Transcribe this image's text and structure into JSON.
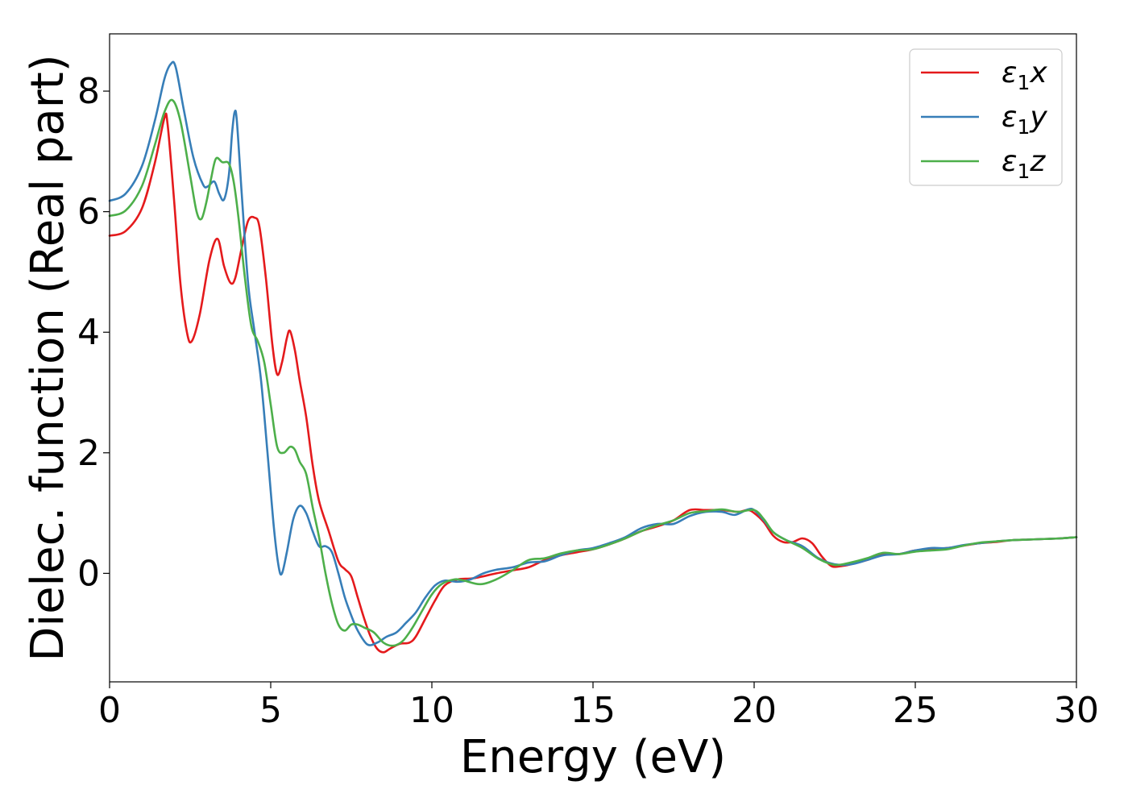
{
  "chart_data": {
    "type": "line",
    "xlabel": "Energy (eV)",
    "ylabel": "Dielec. function (Real part)",
    "xlim": [
      0,
      30
    ],
    "ylim": [
      -1.8,
      8.95
    ],
    "xticks": [
      0,
      5,
      10,
      15,
      20,
      25,
      30
    ],
    "yticks": [
      0,
      2,
      4,
      6,
      8
    ],
    "grid": false,
    "legend_position": "top-right",
    "series": [
      {
        "name": "ε₁x",
        "label_main": "ε",
        "label_sub": "1",
        "label_tail": "x",
        "color": "#e41a1c",
        "points": [
          [
            0,
            5.6
          ],
          [
            0.5,
            5.68
          ],
          [
            1.0,
            6.05
          ],
          [
            1.4,
            6.8
          ],
          [
            1.7,
            7.55
          ],
          [
            1.8,
            7.45
          ],
          [
            2.0,
            6.2
          ],
          [
            2.2,
            4.8
          ],
          [
            2.4,
            4.0
          ],
          [
            2.55,
            3.85
          ],
          [
            2.8,
            4.3
          ],
          [
            3.1,
            5.2
          ],
          [
            3.35,
            5.55
          ],
          [
            3.55,
            5.1
          ],
          [
            3.75,
            4.82
          ],
          [
            3.9,
            4.9
          ],
          [
            4.1,
            5.4
          ],
          [
            4.3,
            5.85
          ],
          [
            4.5,
            5.9
          ],
          [
            4.65,
            5.75
          ],
          [
            4.85,
            4.9
          ],
          [
            5.05,
            3.8
          ],
          [
            5.2,
            3.3
          ],
          [
            5.35,
            3.5
          ],
          [
            5.5,
            3.9
          ],
          [
            5.6,
            4.02
          ],
          [
            5.75,
            3.7
          ],
          [
            5.9,
            3.2
          ],
          [
            6.1,
            2.6
          ],
          [
            6.3,
            1.8
          ],
          [
            6.5,
            1.2
          ],
          [
            6.8,
            0.7
          ],
          [
            7.1,
            0.2
          ],
          [
            7.3,
            0.07
          ],
          [
            7.5,
            -0.05
          ],
          [
            7.7,
            -0.4
          ],
          [
            7.9,
            -0.75
          ],
          [
            8.1,
            -1.05
          ],
          [
            8.3,
            -1.25
          ],
          [
            8.5,
            -1.31
          ],
          [
            8.7,
            -1.25
          ],
          [
            9.0,
            -1.17
          ],
          [
            9.3,
            -1.15
          ],
          [
            9.5,
            -1.05
          ],
          [
            9.8,
            -0.75
          ],
          [
            10.1,
            -0.45
          ],
          [
            10.4,
            -0.2
          ],
          [
            10.8,
            -0.1
          ],
          [
            11.3,
            -0.08
          ],
          [
            12.0,
            0.0
          ],
          [
            12.5,
            0.05
          ],
          [
            13.0,
            0.1
          ],
          [
            13.5,
            0.22
          ],
          [
            14.0,
            0.3
          ],
          [
            14.5,
            0.35
          ],
          [
            15.0,
            0.4
          ],
          [
            15.5,
            0.48
          ],
          [
            16.0,
            0.58
          ],
          [
            16.5,
            0.7
          ],
          [
            17.0,
            0.78
          ],
          [
            17.5,
            0.88
          ],
          [
            18.0,
            1.05
          ],
          [
            18.5,
            1.05
          ],
          [
            19.0,
            1.05
          ],
          [
            19.5,
            1.02
          ],
          [
            19.8,
            1.05
          ],
          [
            20.0,
            1.0
          ],
          [
            20.3,
            0.85
          ],
          [
            20.6,
            0.62
          ],
          [
            20.9,
            0.52
          ],
          [
            21.2,
            0.52
          ],
          [
            21.5,
            0.58
          ],
          [
            21.8,
            0.5
          ],
          [
            22.1,
            0.28
          ],
          [
            22.4,
            0.12
          ],
          [
            22.7,
            0.12
          ],
          [
            23.0,
            0.15
          ],
          [
            23.5,
            0.22
          ],
          [
            24.0,
            0.32
          ],
          [
            24.5,
            0.32
          ],
          [
            25.0,
            0.38
          ],
          [
            25.5,
            0.4
          ],
          [
            26.0,
            0.42
          ],
          [
            26.5,
            0.46
          ],
          [
            27.0,
            0.5
          ],
          [
            27.5,
            0.52
          ],
          [
            28.0,
            0.55
          ],
          [
            28.5,
            0.56
          ],
          [
            29.0,
            0.57
          ],
          [
            29.5,
            0.58
          ],
          [
            30.0,
            0.6
          ]
        ]
      },
      {
        "name": "ε₁y",
        "label_main": "ε",
        "label_sub": "1",
        "label_tail": "y",
        "color": "#377eb8",
        "points": [
          [
            0,
            6.18
          ],
          [
            0.5,
            6.3
          ],
          [
            1.0,
            6.75
          ],
          [
            1.4,
            7.5
          ],
          [
            1.7,
            8.2
          ],
          [
            1.9,
            8.45
          ],
          [
            2.05,
            8.4
          ],
          [
            2.3,
            7.7
          ],
          [
            2.6,
            6.9
          ],
          [
            2.9,
            6.45
          ],
          [
            3.05,
            6.42
          ],
          [
            3.25,
            6.5
          ],
          [
            3.4,
            6.3
          ],
          [
            3.55,
            6.2
          ],
          [
            3.7,
            6.6
          ],
          [
            3.8,
            7.3
          ],
          [
            3.88,
            7.65
          ],
          [
            3.95,
            7.5
          ],
          [
            4.1,
            6.3
          ],
          [
            4.3,
            4.8
          ],
          [
            4.5,
            4.0
          ],
          [
            4.7,
            3.2
          ],
          [
            4.9,
            2.0
          ],
          [
            5.1,
            0.75
          ],
          [
            5.25,
            0.1
          ],
          [
            5.35,
            0.0
          ],
          [
            5.5,
            0.35
          ],
          [
            5.7,
            0.9
          ],
          [
            5.9,
            1.12
          ],
          [
            6.1,
            1.0
          ],
          [
            6.3,
            0.7
          ],
          [
            6.5,
            0.45
          ],
          [
            6.7,
            0.45
          ],
          [
            6.9,
            0.35
          ],
          [
            7.1,
            0.0
          ],
          [
            7.3,
            -0.4
          ],
          [
            7.5,
            -0.7
          ],
          [
            7.7,
            -0.95
          ],
          [
            8.0,
            -1.18
          ],
          [
            8.3,
            -1.15
          ],
          [
            8.6,
            -1.05
          ],
          [
            8.9,
            -0.98
          ],
          [
            9.2,
            -0.82
          ],
          [
            9.5,
            -0.65
          ],
          [
            9.8,
            -0.4
          ],
          [
            10.1,
            -0.2
          ],
          [
            10.4,
            -0.12
          ],
          [
            10.8,
            -0.14
          ],
          [
            11.2,
            -0.1
          ],
          [
            11.6,
            0.0
          ],
          [
            12.0,
            0.06
          ],
          [
            12.5,
            0.1
          ],
          [
            13.0,
            0.18
          ],
          [
            13.5,
            0.2
          ],
          [
            14.0,
            0.3
          ],
          [
            14.5,
            0.38
          ],
          [
            15.0,
            0.42
          ],
          [
            15.5,
            0.5
          ],
          [
            16.0,
            0.6
          ],
          [
            16.5,
            0.75
          ],
          [
            17.0,
            0.82
          ],
          [
            17.5,
            0.82
          ],
          [
            18.0,
            0.95
          ],
          [
            18.5,
            1.02
          ],
          [
            19.0,
            1.02
          ],
          [
            19.4,
            0.97
          ],
          [
            19.8,
            1.06
          ],
          [
            20.0,
            1.05
          ],
          [
            20.3,
            0.88
          ],
          [
            20.6,
            0.68
          ],
          [
            21.0,
            0.55
          ],
          [
            21.5,
            0.45
          ],
          [
            22.0,
            0.25
          ],
          [
            22.5,
            0.15
          ],
          [
            23.0,
            0.15
          ],
          [
            23.5,
            0.22
          ],
          [
            24.0,
            0.3
          ],
          [
            24.5,
            0.32
          ],
          [
            25.0,
            0.38
          ],
          [
            25.5,
            0.42
          ],
          [
            26.0,
            0.42
          ],
          [
            26.5,
            0.47
          ],
          [
            27.0,
            0.5
          ],
          [
            27.5,
            0.53
          ],
          [
            28.0,
            0.55
          ],
          [
            28.5,
            0.56
          ],
          [
            29.0,
            0.57
          ],
          [
            29.5,
            0.58
          ],
          [
            30.0,
            0.6
          ]
        ]
      },
      {
        "name": "ε₁z",
        "label_main": "ε",
        "label_sub": "1",
        "label_tail": "z",
        "color": "#4daf4a",
        "points": [
          [
            0,
            5.93
          ],
          [
            0.5,
            6.02
          ],
          [
            1.0,
            6.42
          ],
          [
            1.4,
            7.1
          ],
          [
            1.7,
            7.65
          ],
          [
            1.95,
            7.85
          ],
          [
            2.2,
            7.5
          ],
          [
            2.5,
            6.6
          ],
          [
            2.7,
            6.0
          ],
          [
            2.85,
            5.88
          ],
          [
            3.0,
            6.15
          ],
          [
            3.15,
            6.55
          ],
          [
            3.3,
            6.88
          ],
          [
            3.5,
            6.82
          ],
          [
            3.7,
            6.8
          ],
          [
            3.85,
            6.5
          ],
          [
            4.0,
            5.9
          ],
          [
            4.2,
            4.9
          ],
          [
            4.4,
            4.1
          ],
          [
            4.6,
            3.85
          ],
          [
            4.8,
            3.5
          ],
          [
            5.0,
            2.8
          ],
          [
            5.2,
            2.1
          ],
          [
            5.4,
            2.0
          ],
          [
            5.6,
            2.1
          ],
          [
            5.75,
            2.05
          ],
          [
            5.9,
            1.85
          ],
          [
            6.1,
            1.65
          ],
          [
            6.3,
            1.1
          ],
          [
            6.5,
            0.6
          ],
          [
            6.7,
            0.0
          ],
          [
            6.9,
            -0.5
          ],
          [
            7.1,
            -0.85
          ],
          [
            7.3,
            -0.95
          ],
          [
            7.5,
            -0.85
          ],
          [
            7.7,
            -0.85
          ],
          [
            7.9,
            -0.9
          ],
          [
            8.2,
            -0.98
          ],
          [
            8.5,
            -1.15
          ],
          [
            8.8,
            -1.2
          ],
          [
            9.1,
            -1.12
          ],
          [
            9.4,
            -0.9
          ],
          [
            9.7,
            -0.62
          ],
          [
            10.0,
            -0.35
          ],
          [
            10.3,
            -0.18
          ],
          [
            10.7,
            -0.1
          ],
          [
            11.0,
            -0.12
          ],
          [
            11.5,
            -0.18
          ],
          [
            12.0,
            -0.1
          ],
          [
            12.5,
            0.05
          ],
          [
            13.0,
            0.22
          ],
          [
            13.5,
            0.25
          ],
          [
            14.0,
            0.33
          ],
          [
            14.5,
            0.38
          ],
          [
            15.0,
            0.4
          ],
          [
            15.5,
            0.48
          ],
          [
            16.0,
            0.58
          ],
          [
            16.5,
            0.7
          ],
          [
            17.0,
            0.8
          ],
          [
            17.5,
            0.88
          ],
          [
            18.0,
            1.0
          ],
          [
            18.5,
            1.03
          ],
          [
            19.0,
            1.06
          ],
          [
            19.5,
            1.02
          ],
          [
            20.0,
            1.05
          ],
          [
            20.3,
            0.9
          ],
          [
            20.6,
            0.68
          ],
          [
            21.0,
            0.55
          ],
          [
            21.5,
            0.42
          ],
          [
            22.0,
            0.24
          ],
          [
            22.5,
            0.14
          ],
          [
            23.0,
            0.18
          ],
          [
            23.5,
            0.25
          ],
          [
            24.0,
            0.34
          ],
          [
            24.5,
            0.32
          ],
          [
            25.0,
            0.36
          ],
          [
            25.5,
            0.38
          ],
          [
            26.0,
            0.4
          ],
          [
            26.5,
            0.46
          ],
          [
            27.0,
            0.51
          ],
          [
            27.5,
            0.53
          ],
          [
            28.0,
            0.55
          ],
          [
            28.5,
            0.56
          ],
          [
            29.0,
            0.57
          ],
          [
            29.5,
            0.58
          ],
          [
            30.0,
            0.6
          ]
        ]
      }
    ]
  }
}
